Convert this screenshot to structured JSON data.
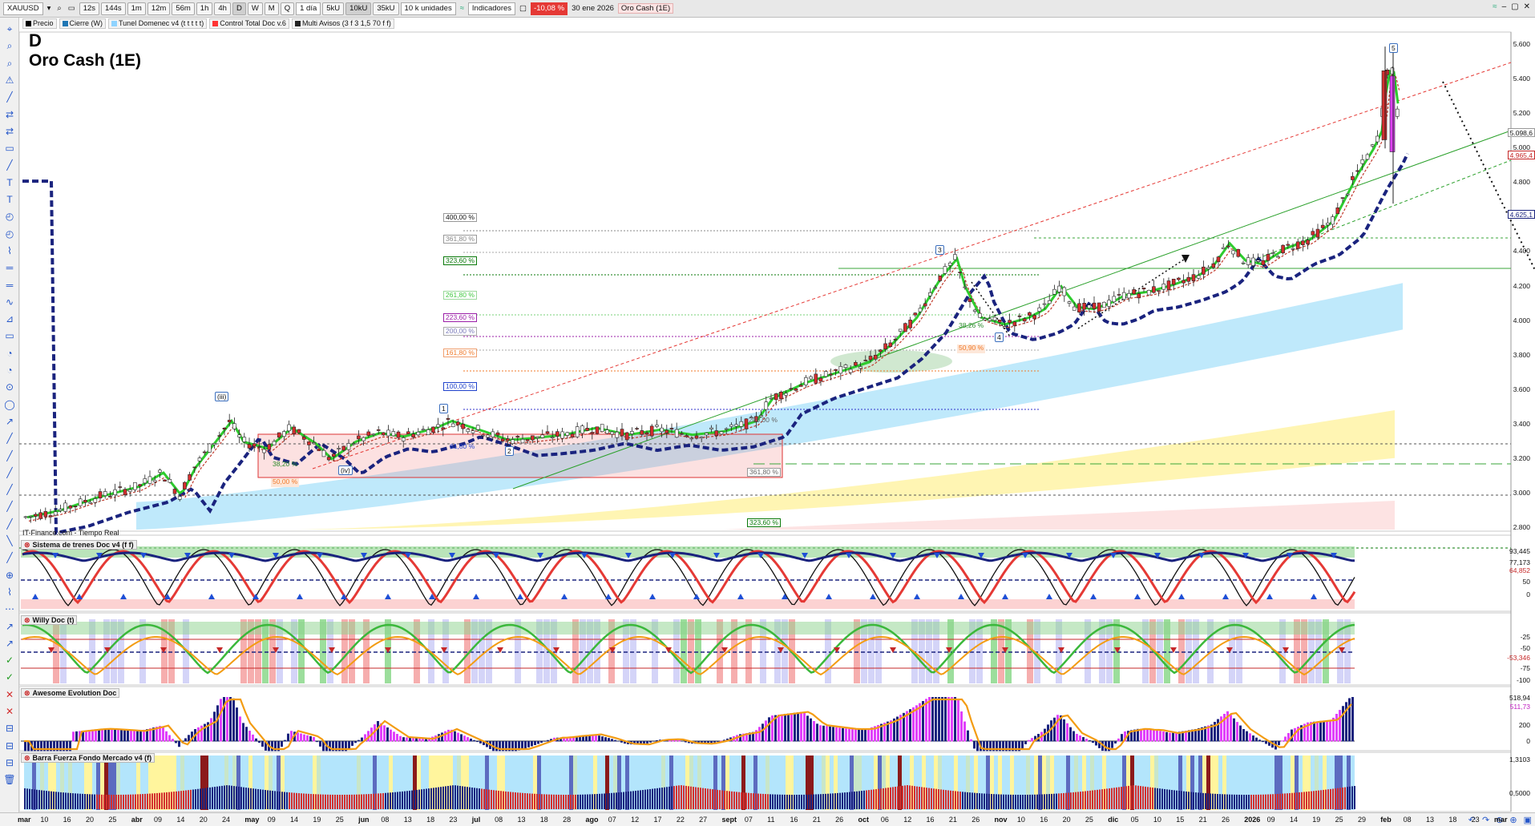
{
  "toolbar": {
    "symbol": "XAUUSD",
    "timeframes": [
      "12s",
      "144s",
      "1m",
      "12m",
      "56m",
      "1h",
      "4h",
      "D",
      "W",
      "M",
      "Q"
    ],
    "active_timeframe": "D",
    "period_select": "1 día",
    "units": [
      "5kU",
      "10kU",
      "35kU"
    ],
    "active_unit": "10kU",
    "units_select": "10 k unidades",
    "indicators_label": "Indicadores",
    "change_badge": "-10,08 %",
    "date": "30 ene 2026",
    "instrument_name": "Oro Cash (1E)"
  },
  "legend": [
    {
      "label": "Precio",
      "color": "#000000"
    },
    {
      "label": "Cierre (W)",
      "color": "#1f77b4"
    },
    {
      "label": "Tunel Domenec v4 (t t t t t)",
      "color": "#8fd3ff"
    },
    {
      "label": "Control Total Doc v.6",
      "color": "#ff3333"
    },
    {
      "label": "Multi Avisos (3 f 3 1,5 70 f f)",
      "color": "#222222"
    }
  ],
  "chart": {
    "period_letter": "D",
    "title": "Oro Cash (1E)",
    "source": "IT-Finance.com - Tiempo Real"
  },
  "price_axis": [
    "5.600",
    "5.400",
    "5.200",
    "5.000",
    "4.800",
    "4.600",
    "4.400",
    "4.200",
    "4.000",
    "3.800",
    "3.600",
    "3.400",
    "3.200",
    "3.000",
    "2.800"
  ],
  "price_tags": {
    "high": "5.098,6",
    "red": "4.965,4",
    "low": "4.625,1"
  },
  "fib_labels": {
    "f400": "400,00 %",
    "f3618": "361,80 %",
    "f3236": "323,60 %",
    "f2618": "261,80 %",
    "f2236": "223,60 %",
    "f200": "200,00 %",
    "f1618": "161,80 %",
    "f100": "100,00 %",
    "f200b": "200,00 %",
    "f3618b": "361,80 %",
    "f3236b": "323,60 %",
    "f618": "61,80 %",
    "f382": "38,20 %",
    "f50": "50,00 %",
    "f3826": "38,26 %",
    "f5090": "50,90 %"
  },
  "waves": [
    "(iii)",
    "(iv)",
    "1",
    "2",
    "3",
    "4",
    "5"
  ],
  "panels": {
    "trenes": {
      "title": "Sistema de trenes Doc v4 (f f)",
      "scale": [
        "93,445",
        "77,173",
        "64,852",
        "50",
        "0"
      ]
    },
    "willy": {
      "title": "Willy Doc (t)",
      "scale": [
        "-25",
        "-50",
        "-53,346",
        "-75",
        "-100"
      ]
    },
    "awesome": {
      "title": "Awesome Evolution Doc",
      "scale": [
        "518,94",
        "511,73",
        "200",
        "0"
      ]
    },
    "barra": {
      "title": "Barra Fuerza Fondo Mercado v4 (f)",
      "scale": [
        "1,3103",
        "0,5000"
      ]
    }
  },
  "x_axis": [
    {
      "t": "mar",
      "b": true
    },
    {
      "t": "10"
    },
    {
      "t": "16"
    },
    {
      "t": "20"
    },
    {
      "t": "25"
    },
    {
      "t": "abr",
      "b": true
    },
    {
      "t": "09"
    },
    {
      "t": "14"
    },
    {
      "t": "20"
    },
    {
      "t": "24"
    },
    {
      "t": "may",
      "b": true
    },
    {
      "t": "09"
    },
    {
      "t": "14"
    },
    {
      "t": "19"
    },
    {
      "t": "25"
    },
    {
      "t": "jun",
      "b": true
    },
    {
      "t": "08"
    },
    {
      "t": "13"
    },
    {
      "t": "18"
    },
    {
      "t": "23"
    },
    {
      "t": "jul",
      "b": true
    },
    {
      "t": "08"
    },
    {
      "t": "13"
    },
    {
      "t": "18"
    },
    {
      "t": "28"
    },
    {
      "t": "ago",
      "b": true
    },
    {
      "t": "07"
    },
    {
      "t": "12"
    },
    {
      "t": "17"
    },
    {
      "t": "22"
    },
    {
      "t": "27"
    },
    {
      "t": "sept",
      "b": true
    },
    {
      "t": "07"
    },
    {
      "t": "11"
    },
    {
      "t": "16"
    },
    {
      "t": "21"
    },
    {
      "t": "26"
    },
    {
      "t": "oct",
      "b": true
    },
    {
      "t": "06"
    },
    {
      "t": "12"
    },
    {
      "t": "16"
    },
    {
      "t": "21"
    },
    {
      "t": "26"
    },
    {
      "t": "nov",
      "b": true
    },
    {
      "t": "10"
    },
    {
      "t": "16"
    },
    {
      "t": "20"
    },
    {
      "t": "25"
    },
    {
      "t": "dic",
      "b": true
    },
    {
      "t": "05"
    },
    {
      "t": "10"
    },
    {
      "t": "15"
    },
    {
      "t": "21"
    },
    {
      "t": "26"
    },
    {
      "t": "2026",
      "b": true
    },
    {
      "t": "09"
    },
    {
      "t": "14"
    },
    {
      "t": "19"
    },
    {
      "t": "25"
    },
    {
      "t": "29"
    },
    {
      "t": "feb",
      "b": true
    },
    {
      "t": "08"
    },
    {
      "t": "13"
    },
    {
      "t": "18"
    },
    {
      "t": "23"
    },
    {
      "t": "mar",
      "b": true
    }
  ],
  "colors": {
    "up": "#0a8a0a",
    "down": "#d32f2f",
    "accent": "#2456c9",
    "ema": "#2ecc2e",
    "mavg": "#1a237e",
    "tunnel_cyan": "#bfe9fb",
    "tunnel_yellow": "#fff5b3"
  }
}
